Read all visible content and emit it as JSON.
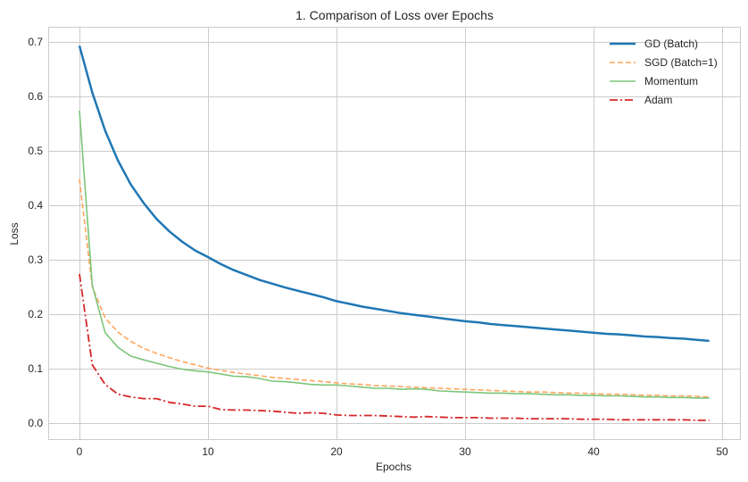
{
  "chart_data": {
    "type": "line",
    "title": "1. Comparison of Loss over Epochs",
    "xlabel": "Epochs",
    "ylabel": "Loss",
    "xlim": [
      -3.5,
      52.5
    ],
    "ylim": [
      -0.03,
      0.73
    ],
    "xticks": [
      0,
      10,
      20,
      30,
      40,
      50
    ],
    "yticks": [
      0.0,
      0.1,
      0.2,
      0.3,
      0.4,
      0.5,
      0.6,
      0.7
    ],
    "ytick_labels": [
      "0.0",
      "0.1",
      "0.2",
      "0.3",
      "0.4",
      "0.5",
      "0.6",
      "0.7"
    ],
    "grid": true,
    "legend_position": "upper right",
    "x": [
      0,
      1,
      2,
      3,
      4,
      5,
      6,
      7,
      8,
      9,
      10,
      11,
      12,
      13,
      14,
      15,
      16,
      17,
      18,
      19,
      20,
      21,
      22,
      23,
      24,
      25,
      26,
      27,
      28,
      29,
      30,
      31,
      32,
      33,
      34,
      35,
      36,
      37,
      38,
      39,
      40,
      41,
      42,
      43,
      44,
      45,
      46,
      47,
      48,
      49
    ],
    "series": [
      {
        "name": "GD (Batch)",
        "color": "#1f77b4",
        "style": "solid",
        "width": 2.5,
        "values": [
          0.693,
          0.607,
          0.537,
          0.482,
          0.438,
          0.404,
          0.375,
          0.352,
          0.333,
          0.317,
          0.305,
          0.292,
          0.281,
          0.272,
          0.263,
          0.256,
          0.249,
          0.243,
          0.237,
          0.231,
          0.224,
          0.219,
          0.214,
          0.21,
          0.206,
          0.202,
          0.199,
          0.196,
          0.193,
          0.19,
          0.187,
          0.185,
          0.182,
          0.18,
          0.178,
          0.176,
          0.174,
          0.172,
          0.17,
          0.168,
          0.166,
          0.164,
          0.163,
          0.161,
          0.159,
          0.158,
          0.156,
          0.155,
          0.153,
          0.151
        ]
      },
      {
        "name": "SGD (Batch=1)",
        "color": "#ffa65c",
        "style": "dashed",
        "width": 1.6,
        "values": [
          0.448,
          0.25,
          0.193,
          0.167,
          0.15,
          0.137,
          0.128,
          0.12,
          0.113,
          0.107,
          0.101,
          0.097,
          0.093,
          0.09,
          0.087,
          0.084,
          0.082,
          0.08,
          0.078,
          0.076,
          0.074,
          0.072,
          0.071,
          0.069,
          0.068,
          0.067,
          0.066,
          0.065,
          0.064,
          0.063,
          0.062,
          0.061,
          0.06,
          0.059,
          0.058,
          0.057,
          0.057,
          0.056,
          0.055,
          0.055,
          0.054,
          0.053,
          0.053,
          0.052,
          0.051,
          0.051,
          0.05,
          0.05,
          0.049,
          0.048
        ]
      },
      {
        "name": "Momentum",
        "color": "#7dc57a",
        "style": "solid",
        "width": 1.6,
        "values": [
          0.574,
          0.253,
          0.166,
          0.139,
          0.123,
          0.116,
          0.11,
          0.104,
          0.099,
          0.096,
          0.094,
          0.09,
          0.086,
          0.085,
          0.082,
          0.077,
          0.076,
          0.074,
          0.071,
          0.07,
          0.07,
          0.068,
          0.066,
          0.064,
          0.064,
          0.062,
          0.063,
          0.062,
          0.059,
          0.058,
          0.057,
          0.056,
          0.055,
          0.055,
          0.054,
          0.054,
          0.053,
          0.052,
          0.052,
          0.051,
          0.051,
          0.05,
          0.05,
          0.049,
          0.048,
          0.048,
          0.047,
          0.047,
          0.046,
          0.046
        ]
      },
      {
        "name": "Adam",
        "color": "#d62728",
        "style": "dashdot",
        "width": 1.8,
        "values": [
          0.274,
          0.107,
          0.071,
          0.053,
          0.048,
          0.045,
          0.045,
          0.038,
          0.035,
          0.031,
          0.031,
          0.025,
          0.024,
          0.024,
          0.023,
          0.022,
          0.02,
          0.018,
          0.019,
          0.018,
          0.015,
          0.014,
          0.014,
          0.014,
          0.013,
          0.012,
          0.011,
          0.012,
          0.011,
          0.01,
          0.01,
          0.01,
          0.009,
          0.009,
          0.009,
          0.008,
          0.008,
          0.008,
          0.008,
          0.007,
          0.007,
          0.007,
          0.006,
          0.006,
          0.006,
          0.006,
          0.006,
          0.006,
          0.005,
          0.005
        ]
      }
    ]
  }
}
